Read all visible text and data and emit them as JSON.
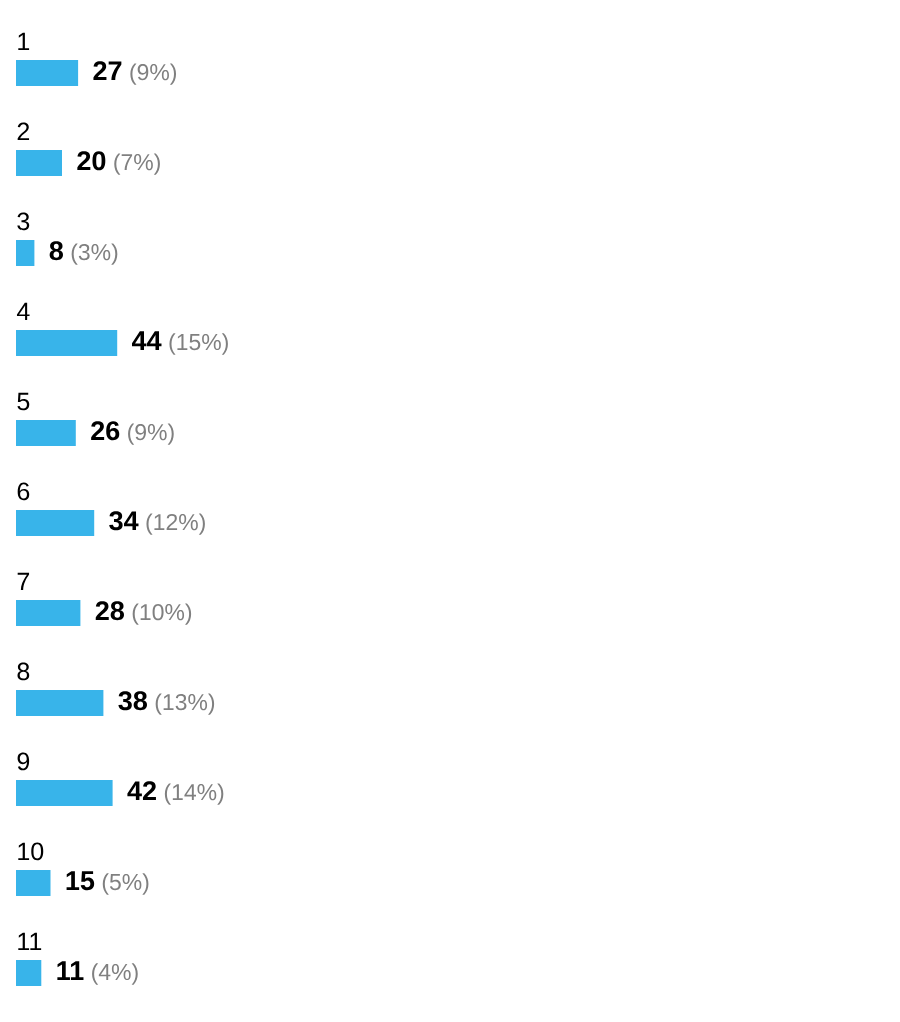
{
  "chart_data": {
    "type": "bar",
    "orientation": "horizontal",
    "tick_labels": "y",
    "categories": [
      "1",
      "2",
      "3",
      "4",
      "5",
      "6",
      "7",
      "8",
      "9",
      "10",
      "11"
    ],
    "values": [
      27,
      20,
      8,
      44,
      26,
      34,
      28,
      38,
      42,
      15,
      11
    ],
    "color": "#38b4ea",
    "value_labels": [
      "**27** (9%)",
      "**20** (7%)",
      "**8** (3%)",
      "**44** (15%)",
      "**26** (9%)",
      "**34** (12%)",
      "**28** (10%)",
      "**38** (13%)",
      "**42** (14%)",
      "**15** (5%)",
      "**11** (4%)"
    ]
  }
}
